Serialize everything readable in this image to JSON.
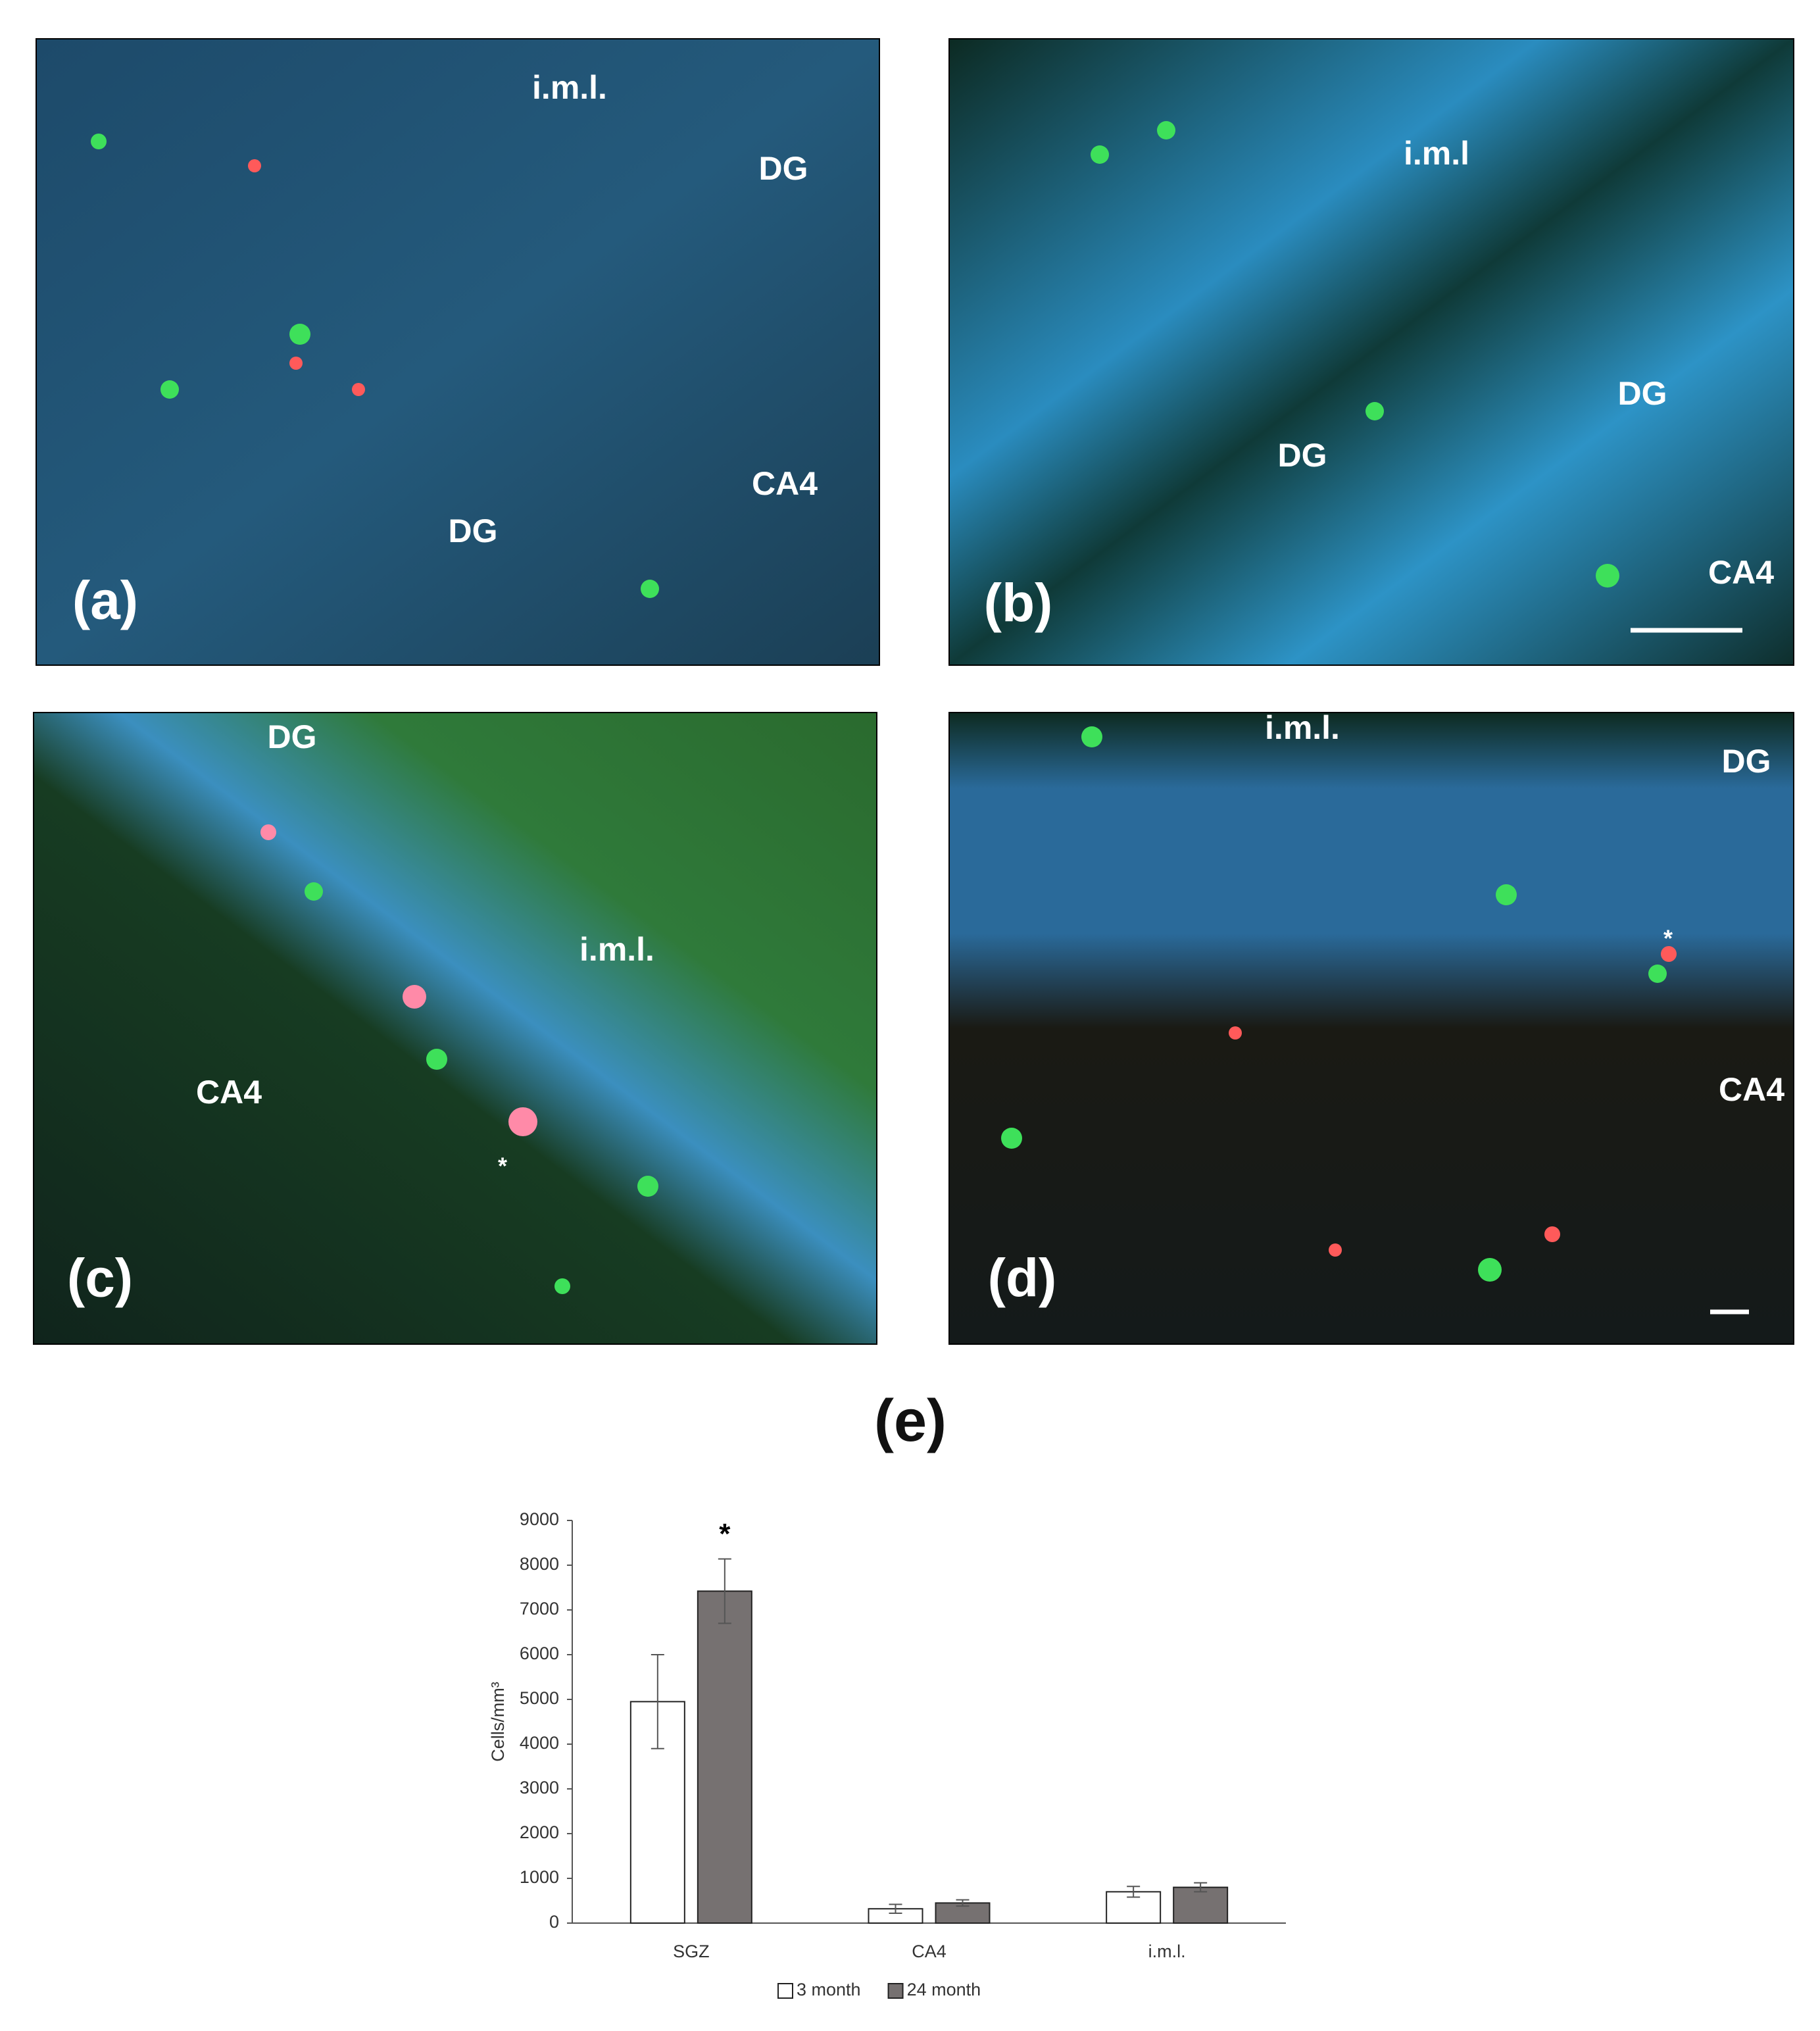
{
  "panels": [
    {
      "label": "(a)",
      "regions": [
        "i.m.l.",
        "DG",
        "CA4",
        "DG"
      ]
    },
    {
      "label": "(b)",
      "regions": [
        "i.m.l",
        "DG",
        "DG",
        "CA4"
      ]
    },
    {
      "label": "(c)",
      "regions": [
        "DG",
        "i.m.l.",
        "CA4",
        "*"
      ]
    },
    {
      "label": "(d)",
      "regions": [
        "i.m.l.",
        "DG",
        "CA4",
        "*"
      ]
    }
  ],
  "chart_label": "(e)",
  "chart_data": {
    "type": "bar",
    "y_label": "Cells/mm³",
    "categories": [
      "SGZ",
      "CA4",
      "i.m.l."
    ],
    "series": [
      {
        "name": "3 month",
        "color": "#ffffff",
        "values": [
          4950,
          320,
          700
        ],
        "errors": [
          1050,
          100,
          120
        ]
      },
      {
        "name": "24 month",
        "color": "#767171",
        "values": [
          7420,
          450,
          800
        ],
        "errors": [
          720,
          70,
          100
        ]
      }
    ],
    "annotations": [
      "*"
    ],
    "ylim": [
      0,
      9000
    ],
    "yticks": [
      0,
      1000,
      2000,
      3000,
      4000,
      5000,
      6000,
      7000,
      8000,
      9000
    ],
    "grid": false,
    "legend": "bottom"
  }
}
